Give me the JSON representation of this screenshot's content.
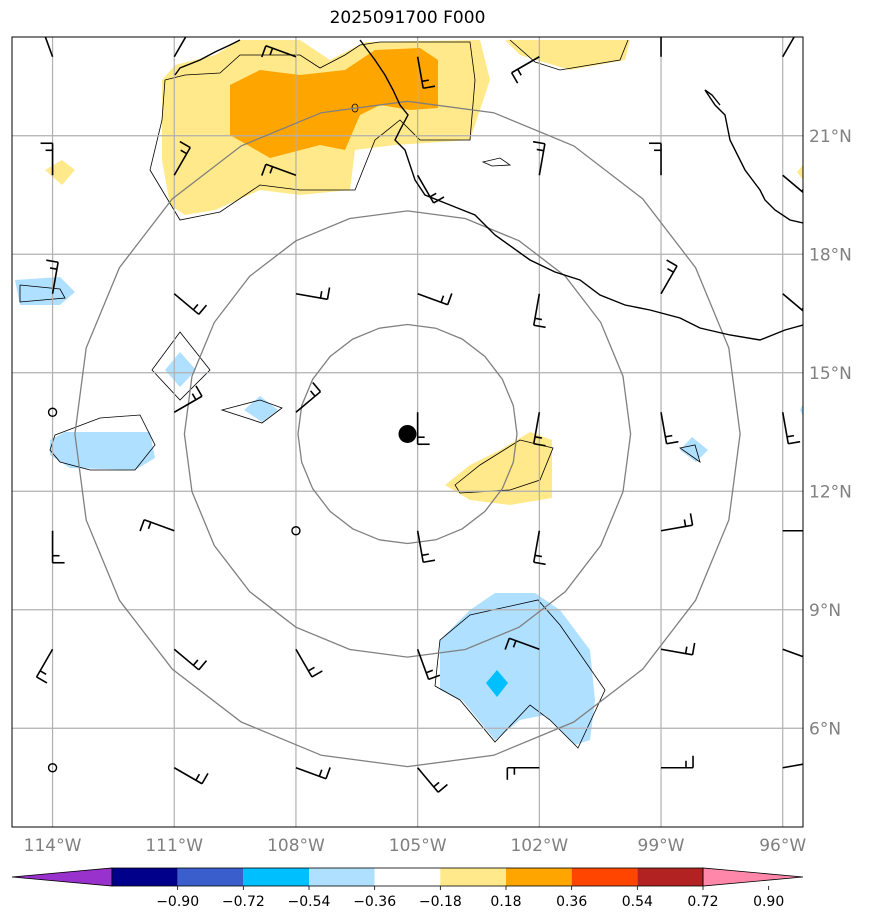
{
  "title": "2025091700 F000",
  "map": {
    "lon_range": [
      -115,
      -95.5
    ],
    "lat_range": [
      3.5,
      23.5
    ],
    "lon_ticks": [
      -114,
      -111,
      -108,
      -105,
      -102,
      -99,
      -96
    ],
    "lat_ticks": [
      6,
      9,
      12,
      15,
      18,
      21
    ],
    "lon_labels": [
      "114°W",
      "111°W",
      "108°W",
      "105°W",
      "102°W",
      "99°W",
      "96°W"
    ],
    "lat_labels": [
      "6°N",
      "9°N",
      "12°N",
      "15°N",
      "18°N",
      "21°N"
    ],
    "storm_center": {
      "lon": -105.25,
      "lat": 13.45
    },
    "range_rings_deg": [
      2.7,
      5.5,
      8.2
    ],
    "colors": {
      "grid": "#b0b0b0",
      "rings": "#808080",
      "coast": "#000000",
      "storm_marker": "#000000"
    }
  },
  "wind_barbs": {
    "description_lon": [
      -114,
      -111,
      -108,
      -105,
      -102,
      -99,
      -96
    ],
    "description_lat": [
      5,
      8,
      11,
      14,
      17,
      20,
      23
    ]
  },
  "colorbar": {
    "colors": [
      "#9932cc",
      "#00008b",
      "#3a5fcd",
      "#00bfff",
      "#b0e0ff",
      "#ffffff",
      "#ffe98a",
      "#ffa500",
      "#ff4500",
      "#b22222",
      "#ff88aa"
    ],
    "labels": [
      "−0.90",
      "−0.72",
      "−0.54",
      "−0.36",
      "−0.18",
      "0.18",
      "0.36",
      "0.54",
      "0.72",
      "0.90"
    ]
  }
}
